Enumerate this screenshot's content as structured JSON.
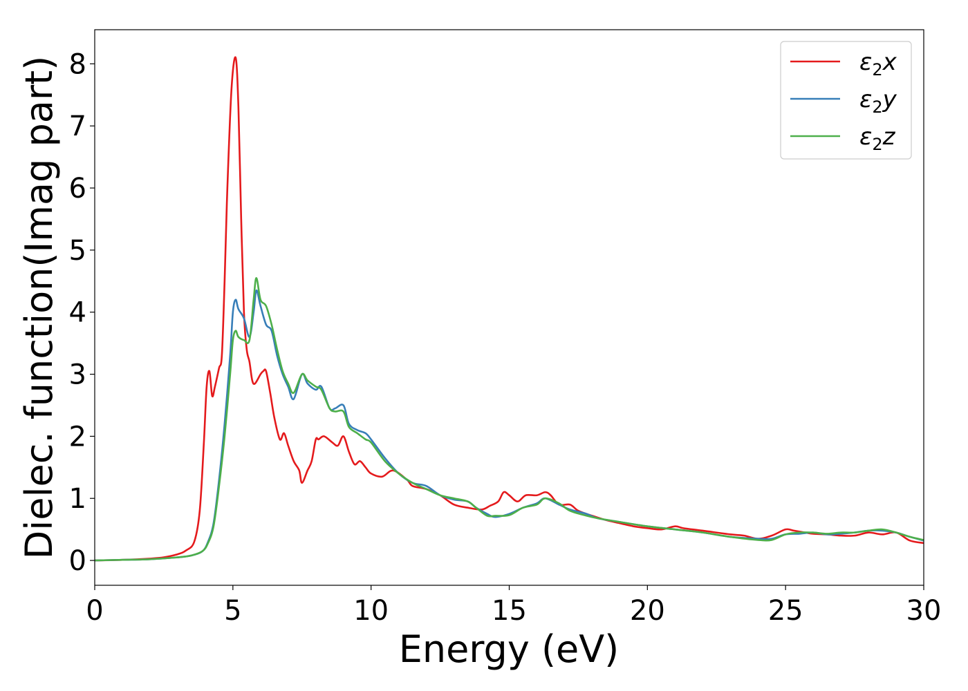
{
  "chart_data": {
    "type": "line",
    "xlabel": "Energy (eV)",
    "ylabel": "Dielec. function(Imag part)",
    "xlim": [
      0,
      30
    ],
    "ylim": [
      -0.4,
      8.55
    ],
    "xticks": [
      0,
      5,
      10,
      15,
      20,
      25,
      30
    ],
    "yticks": [
      0,
      1,
      2,
      3,
      4,
      5,
      6,
      7,
      8
    ],
    "grid": false,
    "legend_position": "top-right",
    "series": [
      {
        "name": "ε2x",
        "label_base": "ε",
        "label_sub": "2",
        "label_suffix": "x",
        "color": "#e41a1c",
        "x": [
          0,
          1,
          2,
          2.5,
          3,
          3.3,
          3.6,
          3.8,
          3.95,
          4.05,
          4.15,
          4.25,
          4.35,
          4.5,
          4.6,
          4.7,
          4.8,
          4.95,
          5.1,
          5.2,
          5.3,
          5.4,
          5.5,
          5.6,
          5.7,
          5.8,
          6.0,
          6.1,
          6.2,
          6.35,
          6.5,
          6.7,
          6.85,
          7.0,
          7.2,
          7.4,
          7.5,
          7.7,
          7.85,
          8.0,
          8.1,
          8.3,
          8.6,
          8.8,
          9.0,
          9.2,
          9.4,
          9.6,
          9.8,
          10.0,
          10.4,
          10.8,
          11.3,
          11.5,
          12,
          12.5,
          13,
          13.5,
          14,
          14.3,
          14.6,
          14.8,
          15,
          15.3,
          15.6,
          16,
          16.3,
          16.5,
          16.8,
          17.2,
          17.5,
          18,
          18.5,
          19,
          19.5,
          20,
          20.5,
          21,
          21.3,
          22,
          23,
          23.5,
          24,
          24.5,
          25,
          25.3,
          25.7,
          26,
          26.5,
          27,
          27.5,
          28,
          28.5,
          29,
          29.5,
          30
        ],
        "y": [
          0,
          0.01,
          0.03,
          0.05,
          0.1,
          0.16,
          0.3,
          0.8,
          1.9,
          2.8,
          3.05,
          2.65,
          2.8,
          3.1,
          3.3,
          4.5,
          6.0,
          7.6,
          8.1,
          7.3,
          5.5,
          4.0,
          3.4,
          3.2,
          2.9,
          2.85,
          3.0,
          3.05,
          3.05,
          2.7,
          2.3,
          1.95,
          2.05,
          1.85,
          1.6,
          1.45,
          1.25,
          1.45,
          1.6,
          1.95,
          1.95,
          2.0,
          1.9,
          1.85,
          2.0,
          1.75,
          1.55,
          1.6,
          1.5,
          1.4,
          1.35,
          1.45,
          1.3,
          1.2,
          1.15,
          1.05,
          0.9,
          0.85,
          0.82,
          0.88,
          0.95,
          1.1,
          1.05,
          0.95,
          1.05,
          1.05,
          1.1,
          1.05,
          0.9,
          0.9,
          0.8,
          0.72,
          0.65,
          0.6,
          0.55,
          0.52,
          0.5,
          0.55,
          0.52,
          0.48,
          0.42,
          0.4,
          0.35,
          0.4,
          0.5,
          0.48,
          0.45,
          0.43,
          0.42,
          0.4,
          0.4,
          0.45,
          0.42,
          0.45,
          0.32,
          0.28
        ]
      },
      {
        "name": "ε2y",
        "label_base": "ε",
        "label_sub": "2",
        "label_suffix": "y",
        "color": "#377eb8",
        "x": [
          0,
          1,
          2,
          3,
          3.5,
          3.9,
          4.1,
          4.3,
          4.5,
          4.7,
          4.9,
          5.0,
          5.1,
          5.2,
          5.4,
          5.6,
          5.75,
          5.85,
          6.0,
          6.2,
          6.4,
          6.6,
          6.8,
          7.0,
          7.2,
          7.5,
          7.7,
          8.0,
          8.2,
          8.5,
          8.7,
          9.0,
          9.2,
          9.5,
          9.8,
          10.0,
          10.5,
          11,
          11.5,
          12,
          12.5,
          13,
          13.5,
          13.8,
          14.2,
          14.5,
          15,
          15.5,
          16,
          16.3,
          16.8,
          17.2,
          17.8,
          18.2,
          19,
          20,
          21,
          22,
          23,
          24,
          24.5,
          25,
          25.5,
          26,
          26.5,
          27,
          27.5,
          28,
          28.5,
          29,
          29.5,
          30
        ],
        "y": [
          0,
          0.01,
          0.02,
          0.05,
          0.08,
          0.15,
          0.3,
          0.6,
          1.3,
          2.2,
          3.3,
          4.0,
          4.2,
          4.05,
          3.9,
          3.6,
          4.0,
          4.35,
          4.1,
          3.8,
          3.7,
          3.3,
          3.0,
          2.8,
          2.6,
          3.0,
          2.85,
          2.75,
          2.8,
          2.45,
          2.45,
          2.5,
          2.2,
          2.1,
          2.05,
          1.95,
          1.65,
          1.4,
          1.25,
          1.2,
          1.05,
          0.98,
          0.95,
          0.85,
          0.75,
          0.7,
          0.75,
          0.85,
          0.92,
          1.0,
          0.9,
          0.82,
          0.75,
          0.68,
          0.62,
          0.55,
          0.5,
          0.45,
          0.38,
          0.35,
          0.35,
          0.42,
          0.43,
          0.45,
          0.42,
          0.43,
          0.45,
          0.48,
          0.48,
          0.45,
          0.38,
          0.32
        ]
      },
      {
        "name": "ε2z",
        "label_base": "ε",
        "label_sub": "2",
        "label_suffix": "z",
        "color": "#4daf4a",
        "x": [
          0,
          1,
          2,
          3,
          3.5,
          3.9,
          4.1,
          4.3,
          4.5,
          4.7,
          4.9,
          5.0,
          5.1,
          5.2,
          5.4,
          5.6,
          5.75,
          5.85,
          6.0,
          6.2,
          6.4,
          6.6,
          6.8,
          7.0,
          7.2,
          7.5,
          7.7,
          8.0,
          8.2,
          8.5,
          8.7,
          9.0,
          9.2,
          9.5,
          9.8,
          10.0,
          10.5,
          11,
          11.5,
          12,
          12.5,
          13,
          13.5,
          13.8,
          14.2,
          14.5,
          15,
          15.5,
          16,
          16.3,
          16.8,
          17.2,
          17.8,
          18.2,
          19,
          20,
          21,
          22,
          23,
          24,
          24.5,
          25,
          25.5,
          26,
          26.5,
          27,
          27.5,
          28,
          28.5,
          29,
          29.5,
          30
        ],
        "y": [
          0,
          0.01,
          0.02,
          0.05,
          0.08,
          0.15,
          0.28,
          0.55,
          1.2,
          2.0,
          3.0,
          3.55,
          3.7,
          3.6,
          3.55,
          3.55,
          4.2,
          4.55,
          4.2,
          4.1,
          3.8,
          3.4,
          3.05,
          2.85,
          2.7,
          3.0,
          2.9,
          2.8,
          2.75,
          2.45,
          2.4,
          2.4,
          2.15,
          2.05,
          1.95,
          1.9,
          1.6,
          1.4,
          1.25,
          1.15,
          1.05,
          1.0,
          0.95,
          0.85,
          0.72,
          0.72,
          0.73,
          0.85,
          0.9,
          1.0,
          0.92,
          0.8,
          0.72,
          0.68,
          0.62,
          0.55,
          0.5,
          0.45,
          0.38,
          0.33,
          0.33,
          0.42,
          0.45,
          0.45,
          0.43,
          0.45,
          0.45,
          0.48,
          0.5,
          0.45,
          0.38,
          0.33
        ]
      }
    ]
  }
}
